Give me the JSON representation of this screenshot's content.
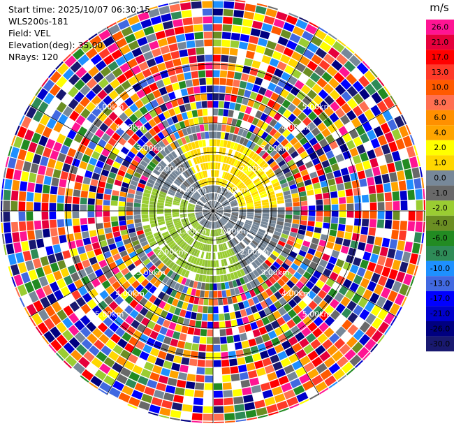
{
  "header": {
    "start_time": "Start time: 2025/10/07 06:30:15",
    "instrument": "WLS200s-181",
    "field": "Field: VEL",
    "elevation": "Elevation(deg): 35.00",
    "nrays": "NRays: 120"
  },
  "chart_data": {
    "type": "heatmap",
    "projection": "polar-ppi",
    "field": "VEL",
    "elevation_deg": 35.0,
    "nrays": 120,
    "range_rings_km": [
      1.0,
      2.0,
      3.0,
      4.0,
      5.0
    ],
    "ring_labels": [
      "1.00km",
      "2.00km",
      "3.00km",
      "4.00km",
      "5.00km"
    ],
    "max_range_km": 6.0,
    "colorbar": {
      "unit": "m/s",
      "tick_labels": [
        "26.0",
        "21.0",
        "17.0",
        "13.0",
        "10.0",
        "8.0",
        "6.0",
        "4.0",
        "2.0",
        "1.0",
        "0.0",
        "-1.0",
        "-2.0",
        "-4.0",
        "-6.0",
        "-8.0",
        "-10.0",
        "-13.0",
        "-17.0",
        "-21.0",
        "-26.0",
        "-30.0"
      ],
      "colors": [
        "#ff1493",
        "#e6003c",
        "#ff0000",
        "#ff3a28",
        "#ff5a00",
        "#ff7050",
        "#ff9000",
        "#ffa500",
        "#ffff00",
        "#ffd700",
        "#778899",
        "#696969",
        "#9acd32",
        "#6b8e23",
        "#228b22",
        "#2e8b57",
        "#1e90ff",
        "#4169e1",
        "#0000ff",
        "#0000cd",
        "#000080",
        "#191970"
      ]
    }
  }
}
